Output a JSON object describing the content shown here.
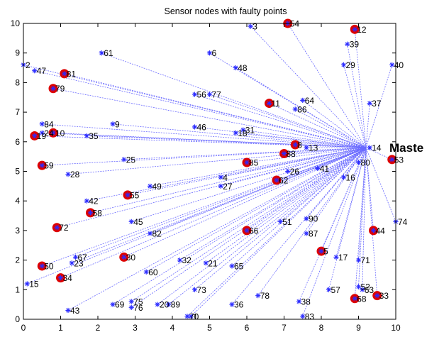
{
  "chart_data": {
    "type": "scatter",
    "title": "Sensor nodes with faulty points",
    "xlabel": "",
    "ylabel": "",
    "xlim": [
      0,
      10
    ],
    "ylim": [
      0,
      10
    ],
    "xticks": [
      "0",
      "1",
      "2",
      "3",
      "4",
      "5",
      "6",
      "7",
      "8",
      "9",
      "10"
    ],
    "yticks": [
      "0",
      "1",
      "2",
      "3",
      "4",
      "5",
      "6",
      "7",
      "8",
      "9",
      "10"
    ],
    "grid": false,
    "master_label": "Maste",
    "master_point": {
      "x": 9.2,
      "y": 5.8
    },
    "colors": {
      "node": "#2b2bff",
      "link": "#6a6aff",
      "fault": "#dd0000"
    },
    "nodes": [
      {
        "id": "1",
        "x": 4.5,
        "y": 0.1,
        "faulty": false
      },
      {
        "id": "2",
        "x": 0.0,
        "y": 8.6,
        "faulty": false
      },
      {
        "id": "3",
        "x": 6.1,
        "y": 9.9,
        "faulty": false
      },
      {
        "id": "4",
        "x": 5.3,
        "y": 4.8,
        "faulty": false
      },
      {
        "id": "5",
        "x": 8.0,
        "y": 2.3,
        "faulty": true
      },
      {
        "id": "6",
        "x": 5.0,
        "y": 9.0,
        "faulty": false
      },
      {
        "id": "8",
        "x": 7.3,
        "y": 5.9,
        "faulty": true
      },
      {
        "id": "9",
        "x": 2.4,
        "y": 6.6,
        "faulty": false
      },
      {
        "id": "10",
        "x": 0.8,
        "y": 6.3,
        "faulty": true
      },
      {
        "id": "11",
        "x": 6.6,
        "y": 7.3,
        "faulty": true
      },
      {
        "id": "12",
        "x": 8.9,
        "y": 9.8,
        "faulty": true
      },
      {
        "id": "13",
        "x": 7.6,
        "y": 5.8,
        "faulty": false
      },
      {
        "id": "14",
        "x": 9.3,
        "y": 5.8,
        "faulty": false
      },
      {
        "id": "15",
        "x": 0.1,
        "y": 1.2,
        "faulty": false
      },
      {
        "id": "16",
        "x": 8.6,
        "y": 4.8,
        "faulty": false
      },
      {
        "id": "17",
        "x": 8.4,
        "y": 2.1,
        "faulty": false
      },
      {
        "id": "18",
        "x": 5.7,
        "y": 6.3,
        "faulty": false
      },
      {
        "id": "19",
        "x": 0.3,
        "y": 6.2,
        "faulty": true
      },
      {
        "id": "20",
        "x": 3.6,
        "y": 0.5,
        "faulty": false
      },
      {
        "id": "21",
        "x": 4.9,
        "y": 1.9,
        "faulty": false
      },
      {
        "id": "23",
        "x": 1.3,
        "y": 1.9,
        "faulty": false
      },
      {
        "id": "24",
        "x": 0.5,
        "y": 6.3,
        "faulty": false
      },
      {
        "id": "25",
        "x": 2.7,
        "y": 5.4,
        "faulty": false
      },
      {
        "id": "26",
        "x": 7.1,
        "y": 5.0,
        "faulty": false
      },
      {
        "id": "27",
        "x": 5.3,
        "y": 4.5,
        "faulty": false
      },
      {
        "id": "28",
        "x": 1.2,
        "y": 4.9,
        "faulty": false
      },
      {
        "id": "29",
        "x": 8.6,
        "y": 8.6,
        "faulty": false
      },
      {
        "id": "30",
        "x": 2.7,
        "y": 2.1,
        "faulty": true
      },
      {
        "id": "31",
        "x": 5.9,
        "y": 6.4,
        "faulty": false
      },
      {
        "id": "32",
        "x": 4.2,
        "y": 2.0,
        "faulty": false
      },
      {
        "id": "33",
        "x": 9.5,
        "y": 0.8,
        "faulty": true
      },
      {
        "id": "34",
        "x": 1.0,
        "y": 1.4,
        "faulty": true
      },
      {
        "id": "35",
        "x": 1.7,
        "y": 6.2,
        "faulty": false
      },
      {
        "id": "36",
        "x": 5.6,
        "y": 0.5,
        "faulty": false
      },
      {
        "id": "37",
        "x": 9.3,
        "y": 7.3,
        "faulty": false
      },
      {
        "id": "38",
        "x": 7.4,
        "y": 0.6,
        "faulty": false
      },
      {
        "id": "39",
        "x": 8.7,
        "y": 9.3,
        "faulty": false
      },
      {
        "id": "40",
        "x": 9.9,
        "y": 8.6,
        "faulty": false
      },
      {
        "id": "41",
        "x": 7.9,
        "y": 5.1,
        "faulty": false
      },
      {
        "id": "42",
        "x": 1.7,
        "y": 4.0,
        "faulty": false
      },
      {
        "id": "43",
        "x": 1.2,
        "y": 0.3,
        "faulty": false
      },
      {
        "id": "44",
        "x": 9.4,
        "y": 3.0,
        "faulty": true
      },
      {
        "id": "45",
        "x": 2.9,
        "y": 3.3,
        "faulty": false
      },
      {
        "id": "46",
        "x": 4.6,
        "y": 6.5,
        "faulty": false
      },
      {
        "id": "47",
        "x": 0.3,
        "y": 8.4,
        "faulty": false
      },
      {
        "id": "48",
        "x": 5.7,
        "y": 8.5,
        "faulty": false
      },
      {
        "id": "49",
        "x": 3.4,
        "y": 4.5,
        "faulty": false
      },
      {
        "id": "50",
        "x": 0.5,
        "y": 1.8,
        "faulty": true
      },
      {
        "id": "51",
        "x": 6.9,
        "y": 3.3,
        "faulty": false
      },
      {
        "id": "52",
        "x": 9.0,
        "y": 1.1,
        "faulty": false
      },
      {
        "id": "53",
        "x": 9.9,
        "y": 5.4,
        "faulty": true
      },
      {
        "id": "54",
        "x": 7.1,
        "y": 10.0,
        "faulty": true
      },
      {
        "id": "55",
        "x": 2.8,
        "y": 4.2,
        "faulty": true
      },
      {
        "id": "56",
        "x": 4.6,
        "y": 7.6,
        "faulty": false
      },
      {
        "id": "57",
        "x": 8.2,
        "y": 1.0,
        "faulty": false
      },
      {
        "id": "58",
        "x": 1.8,
        "y": 3.6,
        "faulty": true
      },
      {
        "id": "59",
        "x": 0.5,
        "y": 5.2,
        "faulty": true
      },
      {
        "id": "60",
        "x": 3.3,
        "y": 1.6,
        "faulty": false
      },
      {
        "id": "61",
        "x": 2.1,
        "y": 9.0,
        "faulty": false
      },
      {
        "id": "62",
        "x": 6.8,
        "y": 4.7,
        "faulty": true
      },
      {
        "id": "63",
        "x": 9.1,
        "y": 1.0,
        "faulty": false
      },
      {
        "id": "64",
        "x": 7.5,
        "y": 7.4,
        "faulty": false
      },
      {
        "id": "65",
        "x": 5.6,
        "y": 1.8,
        "faulty": false
      },
      {
        "id": "66",
        "x": 6.0,
        "y": 3.0,
        "faulty": true
      },
      {
        "id": "67",
        "x": 1.4,
        "y": 2.1,
        "faulty": false
      },
      {
        "id": "68",
        "x": 8.9,
        "y": 0.7,
        "faulty": true
      },
      {
        "id": "69",
        "x": 2.4,
        "y": 0.5,
        "faulty": false
      },
      {
        "id": "70",
        "x": 4.4,
        "y": 0.1,
        "faulty": false
      },
      {
        "id": "71",
        "x": 9.0,
        "y": 2.0,
        "faulty": false
      },
      {
        "id": "72",
        "x": 0.9,
        "y": 3.1,
        "faulty": true
      },
      {
        "id": "73",
        "x": 4.6,
        "y": 1.0,
        "faulty": false
      },
      {
        "id": "74",
        "x": 10.0,
        "y": 3.3,
        "faulty": false
      },
      {
        "id": "75",
        "x": 2.9,
        "y": 0.6,
        "faulty": false
      },
      {
        "id": "76",
        "x": 2.9,
        "y": 0.4,
        "faulty": false
      },
      {
        "id": "77",
        "x": 5.0,
        "y": 7.6,
        "faulty": false
      },
      {
        "id": "78",
        "x": 6.3,
        "y": 0.8,
        "faulty": false
      },
      {
        "id": "79",
        "x": 0.8,
        "y": 7.8,
        "faulty": true
      },
      {
        "id": "80",
        "x": 9.0,
        "y": 5.3,
        "faulty": false
      },
      {
        "id": "81",
        "x": 1.1,
        "y": 8.3,
        "faulty": true
      },
      {
        "id": "82",
        "x": 3.4,
        "y": 2.9,
        "faulty": false
      },
      {
        "id": "83",
        "x": 7.5,
        "y": 0.1,
        "faulty": false
      },
      {
        "id": "84",
        "x": 0.5,
        "y": 6.6,
        "faulty": false
      },
      {
        "id": "85",
        "x": 6.0,
        "y": 5.3,
        "faulty": true
      },
      {
        "id": "86",
        "x": 7.3,
        "y": 7.1,
        "faulty": false
      },
      {
        "id": "87",
        "x": 7.6,
        "y": 2.9,
        "faulty": false
      },
      {
        "id": "88",
        "x": 7.0,
        "y": 5.6,
        "faulty": true
      },
      {
        "id": "89",
        "x": 3.9,
        "y": 0.5,
        "faulty": false
      },
      {
        "id": "90",
        "x": 7.6,
        "y": 3.4,
        "faulty": false
      }
    ]
  }
}
